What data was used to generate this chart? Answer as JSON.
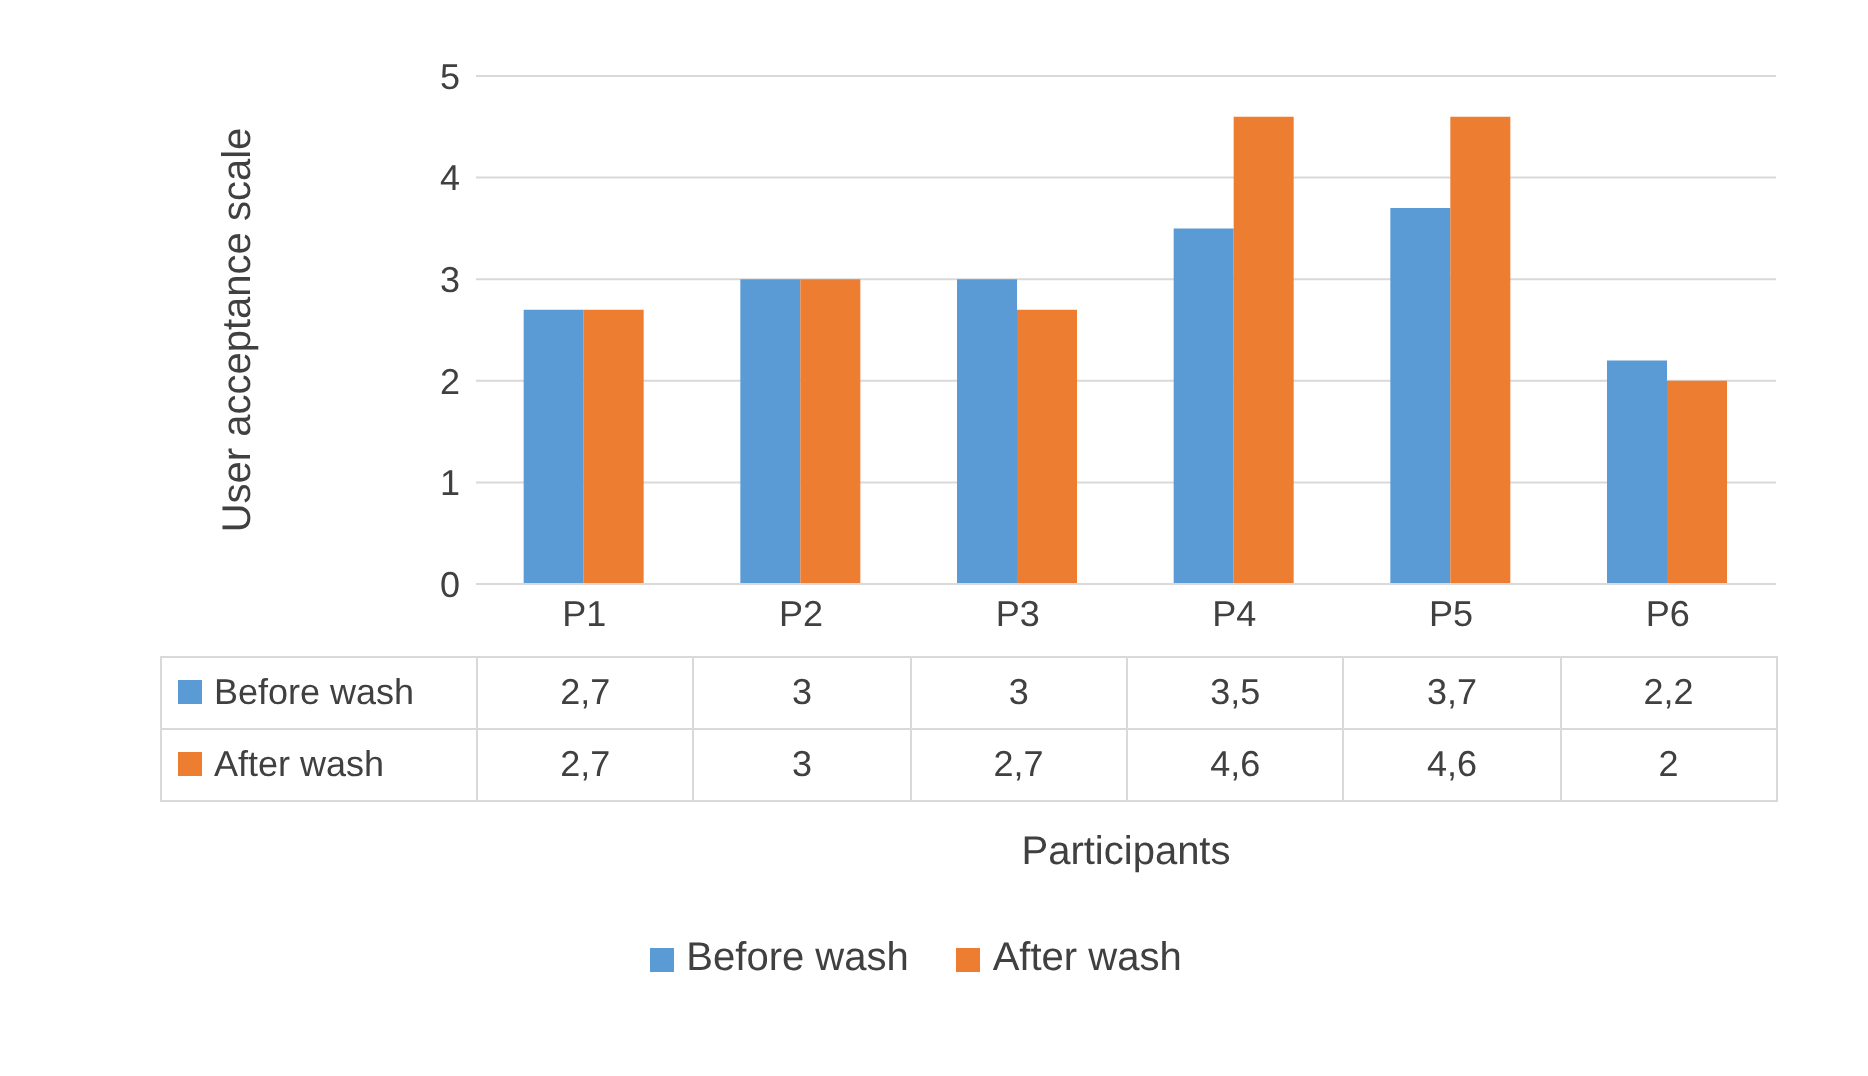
{
  "chart_data": {
    "type": "bar",
    "xlabel": "Participants",
    "ylabel": "User acceptance scale",
    "categories": [
      "P1",
      "P2",
      "P3",
      "P4",
      "P5",
      "P6"
    ],
    "series": [
      {
        "name": "Before wash",
        "color": "#5b9bd5",
        "values": [
          2.7,
          3,
          3,
          3.5,
          3.7,
          2.2
        ],
        "value_labels": [
          "2,7",
          "3",
          "3",
          "3,5",
          "3,7",
          "2,2"
        ]
      },
      {
        "name": "After wash",
        "color": "#ed7d31",
        "values": [
          2.7,
          3,
          2.7,
          4.6,
          4.6,
          2
        ],
        "value_labels": [
          "2,7",
          "3",
          "2,7",
          "4,6",
          "4,6",
          "2"
        ]
      }
    ],
    "ylim": [
      0,
      5
    ],
    "yticks": [
      0,
      1,
      2,
      3,
      4,
      5
    ],
    "grid": "y",
    "legend": "bottom"
  }
}
